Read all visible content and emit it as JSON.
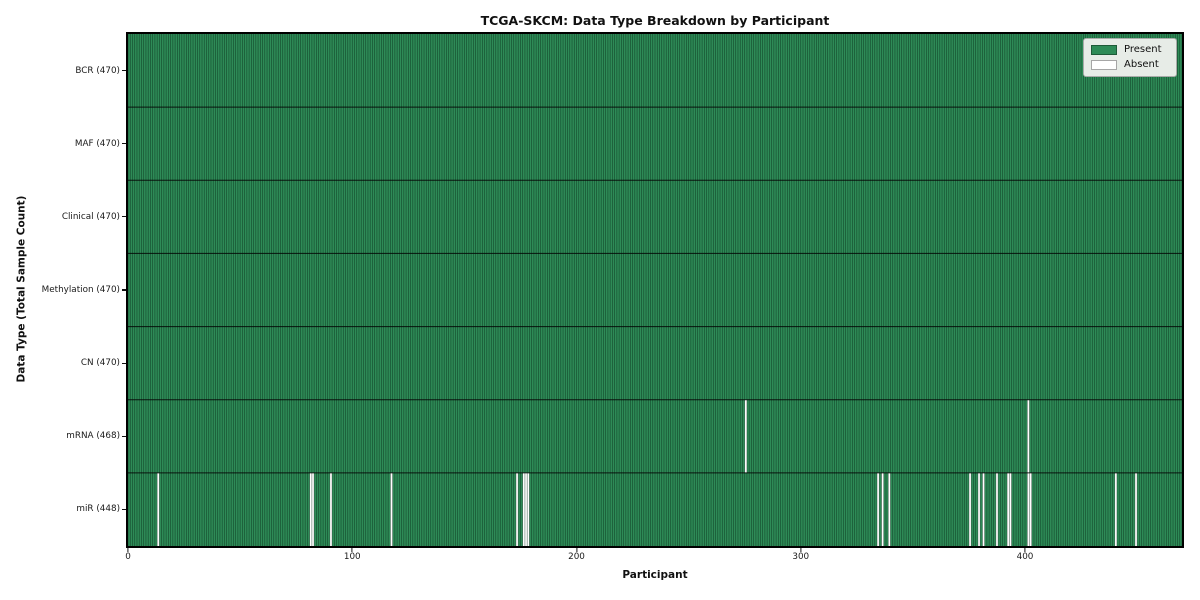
{
  "title": "TCGA-SKCM: Data Type Breakdown by Participant",
  "xlabel": "Participant",
  "ylabel": "Data Type (Total Sample Count)",
  "legend": {
    "present_label": "Present",
    "absent_label": "Absent"
  },
  "colors": {
    "present": "#2e8b57",
    "absent": "#ffffff",
    "cell_edge": "rgba(0,26,12,0.55)",
    "row_divider": "rgba(0,0,0,0.85)",
    "plot_border": "#000000",
    "legend_bg": "#e7ece7",
    "legend_border": "#a9aba9"
  },
  "chart_data": {
    "type": "heatmap",
    "title": "TCGA-SKCM: Data Type Breakdown by Participant",
    "xlabel": "Participant",
    "ylabel": "Data Type (Total Sample Count)",
    "legend": [
      "Present",
      "Absent"
    ],
    "legend_position": "upper right",
    "n_participants": 470,
    "x_ticks": [
      0,
      100,
      200,
      300,
      400
    ],
    "xlim": [
      0,
      470
    ],
    "grid": false,
    "rows": [
      {
        "label": "BCR (470)",
        "data_type": "BCR",
        "total": 470,
        "absent_participants": []
      },
      {
        "label": "MAF (470)",
        "data_type": "MAF",
        "total": 470,
        "absent_participants": []
      },
      {
        "label": "Clinical (470)",
        "data_type": "Clinical",
        "total": 470,
        "absent_participants": []
      },
      {
        "label": "Methylation (470)",
        "data_type": "Methylation",
        "total": 470,
        "absent_participants": []
      },
      {
        "label": "CN (470)",
        "data_type": "CN",
        "total": 470,
        "absent_participants": []
      },
      {
        "label": "mRNA (468)",
        "data_type": "mRNA",
        "total": 468,
        "absent_participants": [
          275,
          401
        ]
      },
      {
        "label": "miR (448)",
        "data_type": "miR",
        "total": 448,
        "absent_participants": [
          13,
          81,
          82,
          90,
          117,
          173,
          176,
          177,
          178,
          334,
          336,
          339,
          375,
          379,
          381,
          387,
          392,
          393,
          401,
          402,
          440,
          449
        ]
      }
    ]
  }
}
